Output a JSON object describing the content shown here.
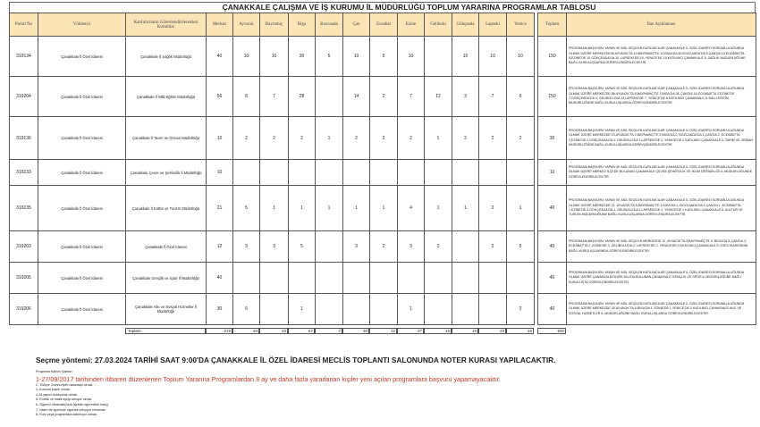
{
  "title": "ÇANAKKALE ÇALIŞMA VE İŞ KURUMU İL MÜDÜRLÜĞÜ TOPLUM YARARINA PROGRAMLAR TABLOSU",
  "headers": [
    "Portal No",
    "Yüklenici",
    "Katılımcıların Görevlendirilecekleri Kurumlar",
    "Merkez",
    "Ayvacık",
    "Bayramiç",
    "Biga",
    "Bozcaada",
    "Çan",
    "Eceabat",
    "Ezine",
    "Gelibolu",
    "Gökçeada",
    "Lapseki",
    "Yenice",
    "Toplam",
    "İlan Açıklaması"
  ],
  "rows": [
    {
      "portal": "319134",
      "yuklenici": "Çanakkale İl Özel İdaresi",
      "kurum": "Çanakkale İl Sağlık Müdürlüğü",
      "counts": [
        "40",
        "10",
        "10",
        "30",
        "5",
        "10",
        "5",
        "10",
        "",
        "10",
        "10",
        "10"
      ],
      "total": "150",
      "desc": "PROGRAMA BAŞVURU YAPAN VE ASİL SEÇİLEN KATILIMCILAR ÇANAKKALE İL ÖZEL İDARESİ SORUMLULUĞUNDA OLMAK ÜZERE MERKEZDE40,AYVACIK'TA 10,BAYRAMİÇ'TE 10,BİGA'DA 30,BOZCAADA'DA 5,ÇAN'DA 10,ECEABATTA 5,EZİNE'DE 10,GÖKÇEADA'DA 10, LAPSEKİ'DE 10, YENİCE'DE 10 KATILIMCI ÇANAKKALE İL SAĞLIK MÜDÜRLÜĞÜNE BAĞLI KURULUŞLARDA GÖREVLENDİRİLECEKTİR."
    },
    {
      "portal": "319204",
      "yuklenici": "Çanakkale İl Özel İdaresi",
      "kurum": "Çanakkale İl Milli Eğitim Müdürlüğü",
      "counts": [
        "56",
        "8",
        "7",
        "28",
        "",
        "14",
        "2",
        "7",
        "12",
        "3",
        "7",
        "6"
      ],
      "total": "150",
      "desc": "PROGRAMA BAŞVURU YAPAN VE ASİL SEÇİLEN KATILIMCILAR ÇANAKKALE İL ÖZEL İDARESİ SORUMLULUĞUNDA OLMAK ÜZERE MERKEZDE 56,AYVACIK'TA 8,BAYRAMİÇ'TE 7,BİGA'DA 28, ÇAN'DA 14,ECEABATTA 2,EZİNE'DE 7,GÖKÇEADA'DA 3, GELİBOLU'DA 12,LAPSEKİ'DE 7, YENİCE'DE 6 KATILIMCI ÇANAKKALE İL MİLLİ EĞİTİM MÜDÜRLÜĞÜNE BAĞLI KURULUŞLARDA GÖREVLENDİRİLECEKTİR."
    },
    {
      "portal": "319136",
      "yuklenici": "Çanakkale İl Özel İdaresi",
      "kurum": "Çanakkale İl Tarım ve Orman Müdürlüğü",
      "counts": [
        "10",
        "2",
        "2",
        "2",
        "1",
        "2",
        "2",
        "2",
        "1",
        "2",
        "2",
        "2"
      ],
      "total": "30",
      "desc": "PROGRAMA BAŞVURU YAPAN VE ASİL SEÇİLEN KATILIMCILAR ÇANAKKALE İL ÖZEL İDARESİ SORUMLULUĞUNDA OLMAK ÜZERE MERKEZDE 10,AYVACIK'TA 2,BAYRAMİÇ'TE 2,BİGA'DA 2, BOZCAADA'DA 1,ÇAN'DA 2 ,ECEABATTA 2,EZİNE'DE 2,GÖKÇEADA'DA 2, GELİBOLU'DA 1,LAPSEKİ'DE 2, YENİCE'DE 2 KATILIMCI ÇANAKKALE İL TARIM VE ORMAN MÜDÜRLÜĞÜNE BAĞLI KURULUŞLARDA GÖREVLENDİRİLECEKTİR."
    },
    {
      "portal": "319133",
      "yuklenici": "Çanakkale İl Özel İdaresi",
      "kurum": "Çanakkale Çevre ve Şehircilik İl Müdürlüğü",
      "counts": [
        "10",
        "",
        "",
        "",
        "",
        "",
        "",
        "",
        "",
        "",
        "",
        ""
      ],
      "total": "10",
      "desc": "PROGRAMA BAŞVURU YAPAN VE ASİL SEÇİLEN KATILIMCILAR ÇANAKKALE İL ÖZEL İDARESİ SORUMLULUĞUNDA OLMAK ÜZERE MERKEZ İLÇEDE BULUNAN ÇANAKKALE ÇEVRE,ŞEHİRCİLİK VE İKLİM DEĞİŞİKLİĞİ İL MÜDÜRLÜĞÜNDE GÖREVLENDİRİLECEKTİR."
    },
    {
      "portal": "319135",
      "yuklenici": "Çanakkale İl Özel İdaresi",
      "kurum": "Çanakkale İl Kültür ve Turizm Müdürlüğü",
      "counts": [
        "21",
        "5",
        "1",
        "1",
        "1",
        "1",
        "1",
        "4",
        "1",
        "1",
        "2",
        "1"
      ],
      "total": "40",
      "desc": "PROGRAMA BAŞVURU YAPAN VE ASİL SEÇİLEN KATILIMCILAR ÇANAKKALE İL ÖZEL İDARESİ SORUMLULUĞUNDA OLMAK ÜZERE MERKEZDE 21 ,AYVACIK'TA 5,BAYRAMİÇ'TE 1,BİGA'DA 1, BOZCAADA'DA 1,ÇAN'DA 1 ,ECEABATTA 1,EZİNE'DE 4,GÖKÇEADA'DA 1, GELİBOLU'DA 1,LAPSEKİ'DE 2, YENİCE'DE 1 KATILIMCI ÇANAKKALE İL KÜLTÜR VE TURİZM MÜDÜRLÜĞÜNE BAĞLI KURULUŞLARDA GÖREVLENDİRİLECEKTİR."
    },
    {
      "portal": "319203",
      "yuklenici": "Çanakkale İl Özel İdaresi",
      "kurum": "Çanakkale İl Özel İdaresi",
      "counts": [
        "12",
        "3",
        "3",
        "5",
        "",
        "3",
        "2",
        "3",
        "2",
        "",
        "2",
        "5"
      ],
      "total": "40",
      "desc": "PROGRAMA BAŞVURU YAPAN VE ASİL SEÇİLEN MERKEZDE 12 ,AYVACIK'TA 3,BAYRAMİÇ'TE 3 ,BİGA'DA 5 ,ÇAN'DA 3, ECEABAT'TA 2 ,EZİNE'DE 3, GELİBOLU'DA 2, LAPSEKİ'DE 2, YENİCE'DE 5 KATILIMCI ÇANAKKALE İL ÖZEL İDARESİNİN BAĞLI KURULUŞLARINDA GÖREVLENDİRİLECEKTİR."
    },
    {
      "portal": "319205",
      "yuklenici": "Çanakkale İl Özel İdaresi",
      "kurum": "Çanakkale Gençlik ve Spor İl Müdürlüğü",
      "counts": [
        "40",
        "",
        "",
        "",
        "",
        "",
        "",
        "",
        "",
        "",
        "",
        ""
      ],
      "total": "40",
      "desc": "PROGRAMA BAŞVURU YAPAN VE ASİL SEÇİLEN KATILIMCILAR ÇANAKKALE İL ÖZEL İDARESİ SORUMLULUĞUNDA OLMAK ÜZERE ÇANAKKALE/GÜZELYALI'DA BULUNAN ÇANAKKALE GENÇLİK VE SPOR İL MÜDÜRLÜĞÜNE BAĞLI KURULUŞTA GÖREVLENDİRİLECEKTİR."
    },
    {
      "portal": "319206",
      "yuklenici": "Çanakkale İl Özel İdaresi",
      "kurum": "Çanakkale Aile ve Sosyal Hizmetler İl Müdürlüğü",
      "counts": [
        "30",
        "6",
        "",
        "1",
        "",
        "",
        "",
        "1",
        "",
        "",
        "",
        "2"
      ],
      "total": "40",
      "desc": "PROGRAMA BAŞVURU YAPAN VE ASİL SEÇİLEN KATILIMCILAR ÇANAKKALE İL ÖZEL İDARESİ SORUMLULUĞUNDA OLMAK ÜZERE MERKEZDE 30,AYVACIK'TA 6,BİGA'DA 1, EZİNE'DE 1,YENİCE'DE 2 KATILIMCI ÇANAKKALE AİLE VE SOSYAL HİZMETLER İL MÜDÜRLÜĞÜNE BAĞLI KURULUŞLARDA GÖREVLENDİRİLECEKTİR."
    }
  ],
  "totals": {
    "label": "Toplam:",
    "counts": [
      "219",
      "34",
      "23",
      "67",
      "7",
      "30",
      "12",
      "27",
      "16",
      "16",
      "23",
      "26"
    ],
    "total": "500"
  },
  "selection_method": "Seçme yöntemi: 27.03.2024 TARİHİ SAAT 9:00'DA ÇANAKKALE İL ÖZEL İDARESİ MECLİS TOPLANTI SALONUNDA NOTER KURASI YAPILACAKTIR.",
  "conditions_title": "Programa Katılım Şartları:",
  "conditions": [
    "1-27/09/2017 tarihinden itibaren düzenlenen Toplum Yararına Programlardan 9 ay ve daha fazla yararlanan kişiler yeni açılan programlara başvuru yapamayacaktır.",
    "2- Türkiye Cumhuriyeti vatandaşı olmak.",
    "3- Kuruma kayıtlı olmak.",
    "4-18 yaşını doldurmuş olmak.",
    "5- Emekli ve malül aylığı almıyor olmak.",
    "6- Öğrenci olmamak(Açık öğretim öğrencileri hariç)",
    "7- Halen bir işyerinde sigortalı çalışıyor olmamak",
    "8- Kurs veya programlara katılmıyor olmak."
  ],
  "colors": {
    "header_bg": "#fbe5b6",
    "condition_highlight": "#c0392b"
  }
}
